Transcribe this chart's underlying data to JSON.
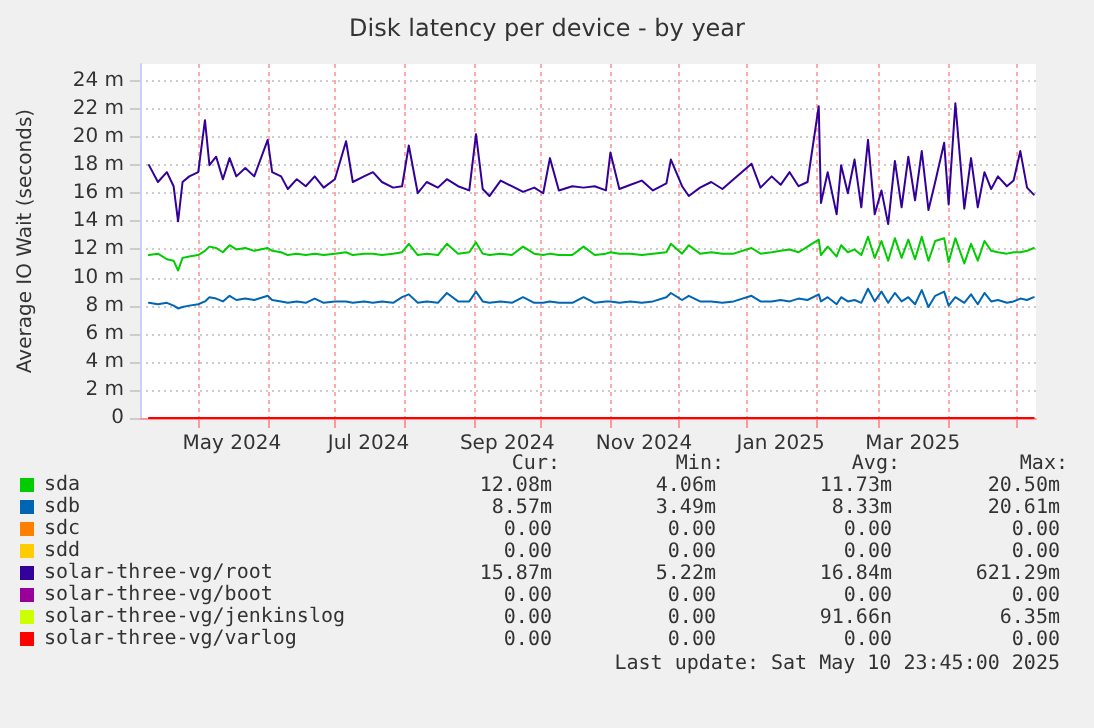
{
  "chart_data": {
    "type": "line",
    "title": "Disk latency per device - by year",
    "ylabel": "Average IO Wait (seconds)",
    "x": [
      "2024-04-09",
      "2024-04-13",
      "2024-04-17",
      "2024-04-20",
      "2024-04-22",
      "2024-04-24",
      "2024-04-27",
      "2024-05-01",
      "2024-05-04",
      "2024-05-06",
      "2024-05-09",
      "2024-05-12",
      "2024-05-15",
      "2024-05-18",
      "2024-05-22",
      "2024-05-26",
      "2024-06-01",
      "2024-06-03",
      "2024-06-07",
      "2024-06-10",
      "2024-06-14",
      "2024-06-18",
      "2024-06-22",
      "2024-06-26",
      "2024-07-01",
      "2024-07-06",
      "2024-07-09",
      "2024-07-14",
      "2024-07-18",
      "2024-07-22",
      "2024-07-27",
      "2024-07-31",
      "2024-08-03",
      "2024-08-07",
      "2024-08-11",
      "2024-08-16",
      "2024-08-20",
      "2024-08-25",
      "2024-08-30",
      "2024-09-02",
      "2024-09-05",
      "2024-09-08",
      "2024-09-13",
      "2024-09-18",
      "2024-09-23",
      "2024-09-28",
      "2024-10-02",
      "2024-10-05",
      "2024-10-09",
      "2024-10-15",
      "2024-10-20",
      "2024-10-25",
      "2024-10-30",
      "2024-11-01",
      "2024-11-05",
      "2024-11-10",
      "2024-11-15",
      "2024-11-20",
      "2024-11-26",
      "2024-11-28",
      "2024-12-03",
      "2024-12-06",
      "2024-12-11",
      "2024-12-16",
      "2024-12-21",
      "2024-12-26",
      "2025-01-03",
      "2025-01-07",
      "2025-01-12",
      "2025-01-16",
      "2025-01-20",
      "2025-01-24",
      "2025-01-28",
      "2025-02-02",
      "2025-02-03",
      "2025-02-06",
      "2025-02-10",
      "2025-02-12",
      "2025-02-15",
      "2025-02-18",
      "2025-02-21",
      "2025-02-24",
      "2025-02-27",
      "2025-03-02",
      "2025-03-05",
      "2025-03-08",
      "2025-03-11",
      "2025-03-14",
      "2025-03-17",
      "2025-03-20",
      "2025-03-23",
      "2025-03-26",
      "2025-03-30",
      "2025-04-01",
      "2025-04-04",
      "2025-04-08",
      "2025-04-11",
      "2025-04-14",
      "2025-04-17",
      "2025-04-20",
      "2025-04-23",
      "2025-04-27",
      "2025-04-30",
      "2025-05-03",
      "2025-05-06",
      "2025-05-09"
    ],
    "series": [
      {
        "name": "sda",
        "color": "#00cc00",
        "values": [
          11.6,
          11.7,
          11.3,
          11.2,
          10.5,
          11.4,
          11.5,
          11.6,
          11.9,
          12.2,
          12.1,
          11.8,
          12.3,
          12.0,
          12.1,
          11.9,
          12.1,
          11.9,
          11.8,
          11.6,
          11.7,
          11.6,
          11.7,
          11.6,
          11.7,
          11.8,
          11.6,
          11.7,
          11.7,
          11.6,
          11.7,
          11.8,
          12.4,
          11.6,
          11.7,
          11.6,
          12.4,
          11.7,
          11.8,
          12.5,
          11.7,
          11.6,
          11.7,
          11.6,
          12.2,
          11.7,
          11.6,
          11.7,
          11.6,
          11.6,
          12.2,
          11.6,
          11.7,
          11.8,
          11.7,
          11.7,
          11.6,
          11.7,
          11.8,
          12.4,
          11.7,
          12.3,
          11.7,
          11.8,
          11.7,
          11.7,
          12.1,
          11.7,
          11.8,
          11.9,
          12.0,
          11.8,
          12.2,
          12.7,
          11.6,
          12.2,
          11.5,
          12.3,
          11.8,
          12.0,
          11.6,
          12.9,
          11.4,
          12.6,
          11.2,
          12.8,
          11.4,
          12.7,
          11.3,
          12.9,
          11.2,
          12.6,
          12.8,
          11.1,
          12.8,
          11.0,
          12.4,
          11.2,
          12.6,
          11.9,
          11.8,
          11.7,
          11.8,
          11.8,
          11.9,
          12.1
        ]
      },
      {
        "name": "sdb",
        "color": "#0066b3",
        "values": [
          8.2,
          8.1,
          8.2,
          8.0,
          7.8,
          7.9,
          8.0,
          8.1,
          8.3,
          8.6,
          8.5,
          8.3,
          8.7,
          8.4,
          8.5,
          8.4,
          8.7,
          8.4,
          8.3,
          8.2,
          8.3,
          8.2,
          8.5,
          8.2,
          8.3,
          8.3,
          8.2,
          8.3,
          8.2,
          8.3,
          8.2,
          8.6,
          8.8,
          8.2,
          8.3,
          8.2,
          8.9,
          8.3,
          8.3,
          9.0,
          8.3,
          8.2,
          8.3,
          8.2,
          8.6,
          8.2,
          8.2,
          8.3,
          8.2,
          8.2,
          8.6,
          8.2,
          8.3,
          8.3,
          8.2,
          8.3,
          8.2,
          8.3,
          8.6,
          8.9,
          8.4,
          8.7,
          8.3,
          8.3,
          8.2,
          8.3,
          8.7,
          8.3,
          8.3,
          8.4,
          8.3,
          8.5,
          8.4,
          8.8,
          8.3,
          8.6,
          8.1,
          8.6,
          8.3,
          8.4,
          8.2,
          9.2,
          8.3,
          9.0,
          8.2,
          8.9,
          8.3,
          8.6,
          8.1,
          9.1,
          7.9,
          8.7,
          9.0,
          8.0,
          8.6,
          8.2,
          8.8,
          8.1,
          8.9,
          8.3,
          8.4,
          8.2,
          8.3,
          8.5,
          8.4,
          8.6
        ]
      },
      {
        "name": "sdc",
        "color": "#ff8000",
        "values": [
          null,
          null,
          null,
          null,
          null,
          null,
          null,
          null,
          null,
          null,
          null,
          null,
          null,
          null,
          null,
          null,
          null,
          null,
          null,
          null,
          null,
          null,
          null,
          null,
          null,
          null,
          null,
          null,
          null,
          null,
          null,
          null,
          null,
          null,
          null,
          null,
          null,
          null,
          null,
          null,
          null,
          null,
          null,
          null,
          null,
          null,
          null,
          null,
          null,
          null,
          null,
          null,
          null,
          null,
          null,
          null,
          null,
          null,
          null,
          null,
          null,
          null,
          null,
          null,
          null,
          null,
          null,
          null,
          null,
          null,
          null,
          null,
          null,
          null,
          null,
          null,
          null,
          null,
          null,
          null,
          null,
          null,
          null,
          null,
          null,
          null,
          null,
          null,
          null,
          null,
          null,
          null,
          null,
          null,
          null,
          null,
          null,
          null,
          null,
          null,
          null,
          null,
          null,
          null,
          null,
          null
        ]
      },
      {
        "name": "sdd",
        "color": "#ffcc00",
        "values": [
          null,
          null,
          null,
          null,
          null,
          null,
          null,
          null,
          null,
          null,
          null,
          null,
          null,
          null,
          null,
          null,
          null,
          null,
          null,
          null,
          null,
          null,
          null,
          null,
          null,
          null,
          null,
          null,
          null,
          null,
          null,
          null,
          null,
          null,
          null,
          null,
          null,
          null,
          null,
          null,
          null,
          null,
          null,
          null,
          null,
          null,
          null,
          null,
          null,
          null,
          null,
          null,
          null,
          null,
          null,
          null,
          null,
          null,
          null,
          null,
          null,
          null,
          null,
          null,
          null,
          null,
          null,
          null,
          null,
          null,
          null,
          null,
          null,
          null,
          null,
          null,
          null,
          null,
          null,
          null,
          null,
          null,
          null,
          null,
          null,
          null,
          null,
          null,
          null,
          null,
          null,
          null,
          null,
          null,
          null,
          null,
          null,
          null,
          null,
          null,
          null,
          null,
          null,
          null,
          null,
          null
        ]
      },
      {
        "name": "solar-three-vg/root",
        "color": "#330099",
        "values": [
          18,
          16.8,
          17.5,
          16.5,
          14.0,
          16.8,
          17.2,
          17.5,
          21.2,
          18.0,
          18.6,
          17.0,
          18.5,
          17.2,
          17.8,
          17.2,
          19.8,
          17.5,
          17.2,
          16.3,
          17.0,
          16.5,
          17.2,
          16.4,
          17.0,
          19.7,
          16.8,
          17.2,
          17.5,
          16.8,
          16.4,
          16.5,
          19.4,
          16.0,
          16.8,
          16.4,
          17.0,
          16.5,
          16.2,
          20.2,
          16.3,
          15.8,
          16.9,
          16.5,
          16.1,
          16.4,
          16.0,
          18.5,
          16.2,
          16.5,
          16.4,
          16.5,
          16.2,
          18.9,
          16.3,
          16.6,
          16.9,
          16.2,
          16.7,
          18.4,
          16.5,
          15.8,
          16.4,
          16.8,
          16.3,
          17.0,
          18.1,
          16.4,
          17.2,
          16.6,
          17.5,
          16.5,
          16.8,
          22.2,
          15.3,
          17.5,
          14.5,
          18.0,
          16.0,
          18.4,
          15.0,
          19.8,
          14.5,
          16.2,
          13.8,
          18.3,
          15.0,
          18.6,
          15.5,
          19.0,
          14.8,
          16.8,
          19.6,
          15.2,
          22.4,
          14.9,
          18.5,
          15.0,
          17.5,
          16.3,
          17.2,
          16.5,
          16.9,
          19.0,
          16.4,
          15.9
        ]
      },
      {
        "name": "solar-three-vg/boot",
        "color": "#990099",
        "values": [
          null,
          null,
          null,
          null,
          null,
          null,
          null,
          null,
          null,
          null,
          null,
          null,
          null,
          null,
          null,
          null,
          null,
          null,
          null,
          null,
          null,
          null,
          null,
          null,
          null,
          null,
          null,
          null,
          null,
          null,
          null,
          null,
          null,
          null,
          null,
          null,
          null,
          null,
          null,
          null,
          null,
          null,
          null,
          null,
          null,
          null,
          null,
          null,
          null,
          null,
          null,
          null,
          null,
          null,
          null,
          null,
          null,
          null,
          null,
          null,
          null,
          null,
          null,
          null,
          null,
          null,
          null,
          null,
          null,
          null,
          null,
          null,
          null,
          null,
          null,
          null,
          null,
          null,
          null,
          null,
          null,
          null,
          null,
          null,
          null,
          null,
          null,
          null,
          null,
          null,
          null,
          null,
          null,
          null,
          null,
          null,
          null,
          null,
          null,
          null,
          null,
          null,
          null,
          null,
          null,
          null
        ]
      },
      {
        "name": "solar-three-vg/jenkinslog",
        "color": "#ccff00",
        "values": [
          null,
          null,
          null,
          null,
          null,
          null,
          null,
          null,
          null,
          null,
          null,
          null,
          null,
          null,
          null,
          null,
          null,
          null,
          null,
          null,
          null,
          null,
          null,
          null,
          null,
          null,
          null,
          null,
          null,
          null,
          null,
          null,
          null,
          null,
          null,
          null,
          null,
          null,
          null,
          null,
          null,
          null,
          null,
          null,
          null,
          null,
          null,
          null,
          null,
          null,
          null,
          null,
          null,
          null,
          null,
          null,
          null,
          null,
          null,
          null,
          null,
          null,
          null,
          null,
          null,
          null,
          null,
          null,
          null,
          null,
          null,
          null,
          null,
          null,
          null,
          null,
          null,
          null,
          null,
          null,
          null,
          null,
          null,
          null,
          null,
          null,
          null,
          null,
          null,
          null,
          null,
          null,
          null,
          null,
          null,
          null,
          null,
          null,
          null,
          null,
          null,
          null,
          null,
          null,
          null,
          null
        ]
      },
      {
        "name": "solar-three-vg/varlog",
        "color": "#ff0000",
        "x": [
          "2024-04-09",
          "2025-05-09"
        ],
        "values": [
          0,
          0
        ]
      }
    ],
    "xlim": [
      "2024-04-05",
      "2025-05-10"
    ],
    "xticks": [
      {
        "value": "2024-05-01",
        "label": null
      },
      {
        "value": "2024-05-16",
        "label": "May 2024"
      },
      {
        "value": "2024-06-01",
        "label": null
      },
      {
        "value": "2024-07-01",
        "label": null
      },
      {
        "value": "2024-07-16",
        "label": "Jul 2024"
      },
      {
        "value": "2024-08-01",
        "label": null
      },
      {
        "value": "2024-09-01",
        "label": null
      },
      {
        "value": "2024-09-16",
        "label": "Sep 2024"
      },
      {
        "value": "2024-10-01",
        "label": null
      },
      {
        "value": "2024-11-01",
        "label": null
      },
      {
        "value": "2024-11-16",
        "label": "Nov 2024"
      },
      {
        "value": "2024-12-01",
        "label": null
      },
      {
        "value": "2025-01-01",
        "label": null
      },
      {
        "value": "2025-01-16",
        "label": "Jan 2025"
      },
      {
        "value": "2025-02-01",
        "label": null
      },
      {
        "value": "2025-03-01",
        "label": null
      },
      {
        "value": "2025-03-16",
        "label": "Mar 2025"
      },
      {
        "value": "2025-04-01",
        "label": null
      },
      {
        "value": "2025-05-01",
        "label": null
      }
    ],
    "ylim": [
      0,
      25.2
    ],
    "yticks": [
      0,
      {
        "value": 2,
        "label": "2 m"
      },
      {
        "value": 4,
        "label": "4 m"
      },
      {
        "value": 6,
        "label": "6 m"
      },
      {
        "value": 8,
        "label": "8 m"
      },
      {
        "value": 10,
        "label": "10 m"
      },
      {
        "value": 12,
        "label": "12 m"
      },
      {
        "value": 14,
        "label": "14 m"
      },
      {
        "value": 16,
        "label": "16 m"
      },
      {
        "value": 18,
        "label": "18 m"
      },
      {
        "value": 20,
        "label": "20 m"
      },
      {
        "value": 22,
        "label": "22 m"
      },
      {
        "value": 24,
        "label": "24 m"
      }
    ],
    "grid": true,
    "legend": "bottom",
    "marker": "none",
    "line_style": "solid",
    "annotations": [
      "Cur:",
      "Min:",
      "Avg:",
      "Max:",
      "12.08m",
      "4.06m",
      "11.73m",
      "20.50m",
      "8.57m",
      "3.49m",
      "8.33m",
      "20.61m",
      "0.00",
      "0.00",
      "0.00",
      "0.00",
      "0.00",
      "0.00",
      "0.00",
      "0.00",
      "15.87m",
      "5.22m",
      "16.84m",
      "621.29m",
      "0.00",
      "0.00",
      "0.00",
      "0.00",
      "0.00",
      "0.00",
      "91.66n",
      "6.35m",
      "0.00",
      "0.00",
      "0.00",
      "0.00",
      "Last update: Sat May 10 23:45:00 2025"
    ]
  }
}
